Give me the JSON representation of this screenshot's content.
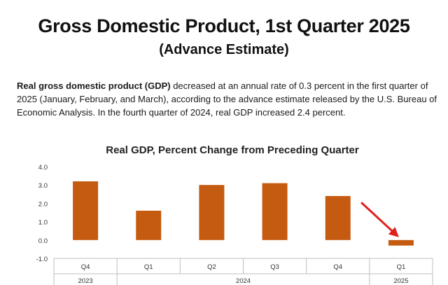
{
  "header": {
    "title": "Gross Domestic Product, 1st Quarter 2025",
    "subtitle": "(Advance Estimate)"
  },
  "summary": {
    "bold_lead": "Real gross domestic product (GDP)",
    "text": " decreased at an annual rate of 0.3 percent in the first quarter of 2025 (January, February, and March), according to the advance estimate released by the U.S. Bureau of Economic Analysis. In the fourth quarter of 2024, real GDP increased 2.4 percent."
  },
  "chart_data": {
    "type": "bar",
    "title": "Real GDP, Percent Change from Preceding Quarter",
    "categories": [
      "Q4",
      "Q1",
      "Q2",
      "Q3",
      "Q4",
      "Q1"
    ],
    "groups": [
      {
        "label": "2023",
        "count": 1
      },
      {
        "label": "2024",
        "count": 4
      },
      {
        "label": "2025",
        "count": 1
      }
    ],
    "values": [
      3.2,
      1.6,
      3.0,
      3.1,
      2.4,
      -0.3
    ],
    "yticks": [
      "4.0",
      "3.0",
      "2.0",
      "1.0",
      "0.0",
      "-1.0"
    ],
    "ylim": [
      -1.0,
      4.0
    ],
    "bar_color": "#c55a11",
    "arrow_color": "#e0201e",
    "grid": false
  }
}
